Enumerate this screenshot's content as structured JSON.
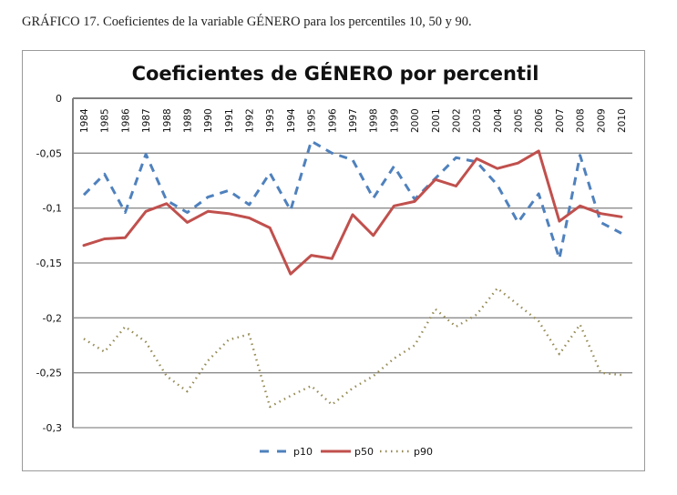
{
  "caption": "GRÁFICO 17. Coeficientes de la variable GÉNERO para los percentiles 10, 50 y 90.",
  "chart_data": {
    "type": "line",
    "title": "Coeficientes de GÉNERO por percentil",
    "xlabel": "",
    "ylabel": "",
    "ylim": [
      -0.3,
      0
    ],
    "yticks": [
      0,
      -0.05,
      -0.1,
      -0.15,
      -0.2,
      -0.25,
      -0.3
    ],
    "ytick_labels": [
      "0",
      "-0,05",
      "-0,1",
      "-0,15",
      "-0,2",
      "-0,25",
      "-0,3"
    ],
    "grid": true,
    "legend_position": "bottom",
    "categories": [
      "1984",
      "1985",
      "1986",
      "1987",
      "1988",
      "1989",
      "1990",
      "1991",
      "1992",
      "1993",
      "1994",
      "1995",
      "1996",
      "1997",
      "1998",
      "1999",
      "2000",
      "2001",
      "2002",
      "2003",
      "2004",
      "2005",
      "2006",
      "2007",
      "2008",
      "2009",
      "2010"
    ],
    "series": [
      {
        "name": "p10",
        "style": "dashed",
        "color": "#4f81bd",
        "values": [
          -0.088,
          -0.069,
          -0.104,
          -0.051,
          -0.093,
          -0.104,
          -0.09,
          -0.084,
          -0.097,
          -0.068,
          -0.102,
          -0.039,
          -0.05,
          -0.056,
          -0.091,
          -0.062,
          -0.092,
          -0.073,
          -0.054,
          -0.058,
          -0.079,
          -0.113,
          -0.087,
          -0.146,
          -0.052,
          -0.113,
          -0.123
        ]
      },
      {
        "name": "p50",
        "style": "solid",
        "color": "#c0504d",
        "values": [
          -0.134,
          -0.128,
          -0.127,
          -0.103,
          -0.096,
          -0.113,
          -0.103,
          -0.105,
          -0.109,
          -0.118,
          -0.16,
          -0.143,
          -0.146,
          -0.106,
          -0.125,
          -0.098,
          -0.094,
          -0.074,
          -0.08,
          -0.055,
          -0.064,
          -0.059,
          -0.048,
          -0.112,
          -0.098,
          -0.105,
          -0.108
        ]
      },
      {
        "name": "p90",
        "style": "dotted",
        "color": "#948a54",
        "values": [
          -0.219,
          -0.231,
          -0.208,
          -0.222,
          -0.253,
          -0.267,
          -0.239,
          -0.22,
          -0.215,
          -0.281,
          -0.271,
          -0.262,
          -0.279,
          -0.264,
          -0.253,
          -0.237,
          -0.225,
          -0.192,
          -0.208,
          -0.197,
          -0.173,
          -0.188,
          -0.203,
          -0.233,
          -0.206,
          -0.25,
          -0.252
        ]
      }
    ]
  }
}
